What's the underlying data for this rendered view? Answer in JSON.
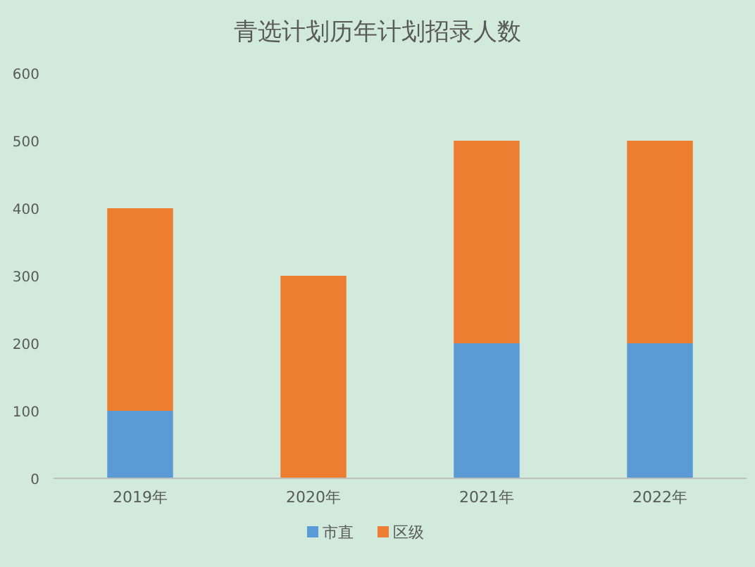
{
  "chart_data": {
    "type": "bar",
    "title": "青选计划历年计划招录人数",
    "categories": [
      "2019年",
      "2020年",
      "2021年",
      "2022年"
    ],
    "stacked": true,
    "ylim": [
      0,
      600
    ],
    "yticks": [
      0,
      100,
      200,
      300,
      400,
      500,
      600
    ],
    "legend": "bottom",
    "series": [
      {
        "name": "市直",
        "color": "#5b9bd5",
        "values": [
          100,
          0,
          200,
          200
        ]
      },
      {
        "name": "区级",
        "color": "#ed7d31",
        "values": [
          300,
          300,
          300,
          300
        ]
      }
    ]
  }
}
